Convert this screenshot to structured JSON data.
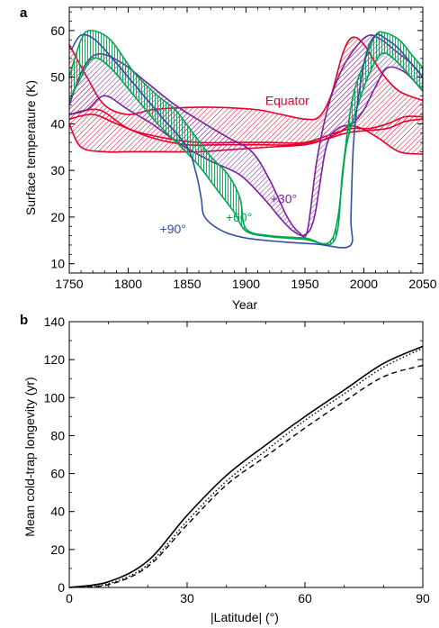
{
  "colors": {
    "equator": "#e4002b",
    "lat30": "#7b1fa2",
    "lat60": "#00a651",
    "lat90": "#2e4fa3",
    "axis": "#000000"
  },
  "chart_data": [
    {
      "panel": "a",
      "type": "area",
      "xlabel": "Year",
      "ylabel": "Surface temperature (K)",
      "xlim": [
        1750,
        2050
      ],
      "ylim": [
        8,
        65
      ],
      "xticks": [
        1750,
        1800,
        1850,
        1900,
        1950,
        2000,
        2050
      ],
      "yticks": [
        10,
        20,
        30,
        40,
        50,
        60
      ],
      "annotations": [
        {
          "text": "Equator",
          "x": 1935,
          "y": 44,
          "series": "equator"
        },
        {
          "text": "+30°",
          "x": 1932,
          "y": 23,
          "series": "lat30"
        },
        {
          "text": "+60°",
          "x": 1894,
          "y": 19,
          "series": "lat60"
        },
        {
          "text": "+90°",
          "x": 1838,
          "y": 16.5,
          "series": "lat90"
        }
      ],
      "series": [
        {
          "key": "equator",
          "style": "band",
          "upper": [
            [
              1750,
              57
            ],
            [
              1765,
              50
            ],
            [
              1780,
              44
            ],
            [
              1800,
              42
            ],
            [
              1820,
              43
            ],
            [
              1850,
              43.5
            ],
            [
              1880,
              43.5
            ],
            [
              1910,
              43
            ],
            [
              1930,
              42
            ],
            [
              1950,
              41
            ],
            [
              1962,
              41.5
            ],
            [
              1972,
              46
            ],
            [
              1982,
              55
            ],
            [
              1990,
              58.5
            ],
            [
              2000,
              57
            ],
            [
              2015,
              51
            ],
            [
              2030,
              47
            ],
            [
              2050,
              45
            ]
          ],
          "lower": [
            [
              1750,
              40
            ],
            [
              1760,
              35
            ],
            [
              1780,
              34
            ],
            [
              1800,
              34
            ],
            [
              1830,
              34
            ],
            [
              1860,
              34
            ],
            [
              1890,
              34.5
            ],
            [
              1920,
              35
            ],
            [
              1950,
              35.5
            ],
            [
              1965,
              36.5
            ],
            [
              1978,
              38
            ],
            [
              1988,
              39.5
            ],
            [
              1998,
              39
            ],
            [
              2012,
              37
            ],
            [
              2030,
              34
            ],
            [
              2050,
              33.5
            ]
          ]
        },
        {
          "key": "equator",
          "style": "band",
          "upper": [
            [
              1750,
              42
            ],
            [
              1775,
              43
            ],
            [
              1800,
              39
            ],
            [
              1830,
              37
            ],
            [
              1860,
              36
            ],
            [
              1890,
              36
            ],
            [
              1920,
              36
            ],
            [
              1950,
              36
            ],
            [
              1975,
              38
            ],
            [
              1990,
              39
            ],
            [
              2005,
              39
            ],
            [
              2020,
              40
            ],
            [
              2035,
              41.5
            ],
            [
              2050,
              41.5
            ]
          ],
          "lower": [
            [
              1750,
              41
            ],
            [
              1770,
              42
            ],
            [
              1790,
              40
            ],
            [
              1820,
              37
            ],
            [
              1850,
              35.5
            ],
            [
              1880,
              35.5
            ],
            [
              1910,
              35.5
            ],
            [
              1940,
              35.5
            ],
            [
              1965,
              36.5
            ],
            [
              1985,
              38
            ],
            [
              2000,
              38.5
            ],
            [
              2020,
              39
            ],
            [
              2035,
              40.5
            ],
            [
              2050,
              41
            ]
          ]
        },
        {
          "key": "lat30",
          "style": "band",
          "upper": [
            [
              1750,
              44
            ],
            [
              1762,
              52
            ],
            [
              1775,
              55
            ],
            [
              1795,
              53
            ],
            [
              1815,
              49
            ],
            [
              1840,
              44
            ],
            [
              1865,
              40
            ],
            [
              1885,
              37
            ],
            [
              1905,
              34
            ],
            [
              1920,
              28
            ],
            [
              1935,
              20
            ],
            [
              1945,
              16.7
            ],
            [
              1952,
              17
            ],
            [
              1960,
              32
            ],
            [
              1970,
              44
            ],
            [
              1982,
              52
            ],
            [
              1995,
              57
            ],
            [
              2005,
              59
            ],
            [
              2015,
              58
            ],
            [
              2025,
              56
            ],
            [
              2040,
              53
            ],
            [
              2050,
              50
            ]
          ],
          "lower": [
            [
              1750,
              42
            ],
            [
              1765,
              43
            ],
            [
              1780,
              46
            ],
            [
              1800,
              43
            ],
            [
              1820,
              40
            ],
            [
              1845,
              35.5
            ],
            [
              1870,
              32
            ],
            [
              1895,
              29
            ],
            [
              1915,
              24
            ],
            [
              1930,
              19.5
            ],
            [
              1940,
              17
            ],
            [
              1950,
              16.2
            ],
            [
              1958,
              20
            ],
            [
              1968,
              35
            ],
            [
              1978,
              39
            ],
            [
              1990,
              40
            ],
            [
              2000,
              43
            ],
            [
              2010,
              48
            ],
            [
              2020,
              52
            ],
            [
              2035,
              51
            ],
            [
              2050,
              47
            ]
          ]
        },
        {
          "key": "lat60",
          "style": "band",
          "upper": [
            [
              1750,
              50
            ],
            [
              1760,
              58
            ],
            [
              1768,
              60
            ],
            [
              1785,
              58
            ],
            [
              1805,
              51
            ],
            [
              1825,
              46
            ],
            [
              1840,
              43
            ],
            [
              1855,
              38
            ],
            [
              1870,
              33
            ],
            [
              1885,
              29
            ],
            [
              1895,
              24
            ],
            [
              1900,
              17.5
            ],
            [
              1920,
              16
            ],
            [
              1950,
              15.5
            ],
            [
              1975,
              15
            ],
            [
              1982,
              30
            ],
            [
              1990,
              45
            ],
            [
              2000,
              53
            ],
            [
              2010,
              59
            ],
            [
              2018,
              59.5
            ],
            [
              2030,
              58
            ],
            [
              2040,
              55
            ],
            [
              2050,
              52
            ]
          ],
          "lower": [
            [
              1750,
              45
            ],
            [
              1758,
              49
            ],
            [
              1770,
              54
            ],
            [
              1785,
              52
            ],
            [
              1805,
              46
            ],
            [
              1825,
              40
            ],
            [
              1845,
              35
            ],
            [
              1860,
              31
            ],
            [
              1875,
              26
            ],
            [
              1890,
              21
            ],
            [
              1900,
              17
            ],
            [
              1920,
              15.8
            ],
            [
              1950,
              15.2
            ],
            [
              1970,
              14.5
            ],
            [
              1978,
              20
            ],
            [
              1985,
              35
            ],
            [
              1995,
              44
            ],
            [
              2005,
              51
            ],
            [
              2015,
              55
            ],
            [
              2025,
              54
            ],
            [
              2040,
              50
            ],
            [
              2050,
              47
            ]
          ]
        },
        {
          "key": "lat90",
          "style": "line",
          "points": [
            [
              1752,
              56
            ],
            [
              1760,
              59
            ],
            [
              1772,
              58
            ],
            [
              1790,
              53
            ],
            [
              1810,
              47
            ],
            [
              1830,
              41
            ],
            [
              1850,
              35
            ],
            [
              1858,
              29
            ],
            [
              1862,
              24
            ],
            [
              1865,
              20
            ],
            [
              1880,
              17
            ],
            [
              1900,
              15.5
            ],
            [
              1930,
              14.7
            ],
            [
              1960,
              14.2
            ],
            [
              1988,
              13.8
            ],
            [
              1989,
              20
            ],
            [
              1991,
              35
            ],
            [
              1995,
              45
            ],
            [
              2002,
              55
            ],
            [
              2010,
              59
            ],
            [
              2020,
              58
            ],
            [
              2030,
              56
            ],
            [
              2040,
              53
            ],
            [
              2050,
              50
            ]
          ]
        }
      ]
    },
    {
      "panel": "b",
      "type": "line",
      "xlabel": "|Latitude| (°)",
      "ylabel": "Mean cold-trap longevity (yr)",
      "xlim": [
        0,
        90
      ],
      "ylim": [
        0,
        140
      ],
      "xticks": [
        0,
        30,
        60,
        90
      ],
      "yticks": [
        0,
        20,
        40,
        60,
        80,
        100,
        120,
        140
      ],
      "series": [
        {
          "dash": "solid",
          "x": [
            0,
            10,
            20,
            30,
            40,
            50,
            60,
            70,
            80,
            90
          ],
          "y": [
            0,
            3,
            14,
            38,
            59,
            75,
            90,
            104,
            118,
            127
          ]
        },
        {
          "dash": "dotted",
          "x": [
            0,
            10,
            20,
            30,
            40,
            50,
            60,
            70,
            80,
            90
          ],
          "y": [
            0,
            2,
            12,
            35,
            56,
            72,
            88,
            102,
            116,
            126
          ]
        },
        {
          "dash": "dashed",
          "x": [
            0,
            10,
            20,
            30,
            40,
            50,
            60,
            70,
            80,
            90
          ],
          "y": [
            0,
            1.5,
            11,
            33,
            54,
            69,
            84,
            98,
            111,
            117
          ]
        }
      ]
    }
  ]
}
